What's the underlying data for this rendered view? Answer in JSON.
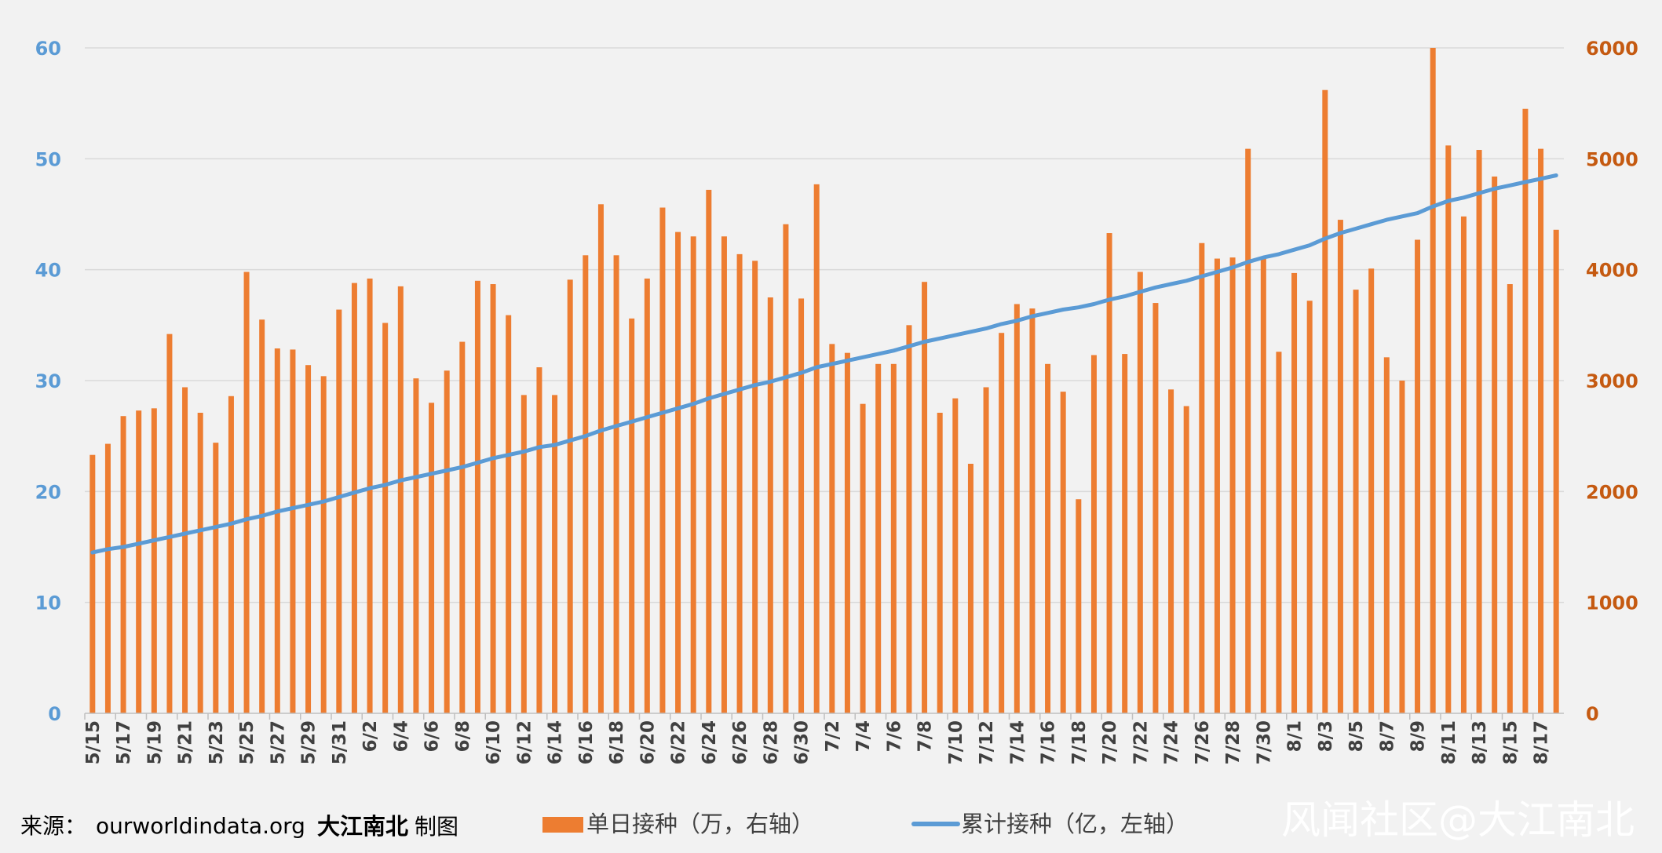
{
  "chart_data": {
    "type": "bar",
    "categories": [
      "5/15",
      "5/16",
      "5/17",
      "5/18",
      "5/19",
      "5/20",
      "5/21",
      "5/22",
      "5/23",
      "5/24",
      "5/25",
      "5/26",
      "5/27",
      "5/28",
      "5/29",
      "5/30",
      "5/31",
      "6/1",
      "6/2",
      "6/3",
      "6/4",
      "6/5",
      "6/6",
      "6/7",
      "6/8",
      "6/9",
      "6/10",
      "6/11",
      "6/12",
      "6/13",
      "6/14",
      "6/15",
      "6/16",
      "6/17",
      "6/18",
      "6/19",
      "6/20",
      "6/21",
      "6/22",
      "6/23",
      "6/24",
      "6/25",
      "6/26",
      "6/27",
      "6/28",
      "6/29",
      "6/30",
      "7/1",
      "7/2",
      "7/3",
      "7/4",
      "7/5",
      "7/6",
      "7/7",
      "7/8",
      "7/9",
      "7/10",
      "7/11",
      "7/12",
      "7/13",
      "7/14",
      "7/15",
      "7/16",
      "7/17",
      "7/18",
      "7/19",
      "7/20",
      "7/21",
      "7/22",
      "7/23",
      "7/24",
      "7/25",
      "7/26",
      "7/27",
      "7/28",
      "7/29",
      "7/30",
      "7/31",
      "8/1",
      "8/2",
      "8/3",
      "8/4",
      "8/5",
      "8/6",
      "8/7",
      "8/8",
      "8/9",
      "8/10",
      "8/11",
      "8/12",
      "8/13",
      "8/14",
      "8/15",
      "8/16",
      "8/17",
      "8/18"
    ],
    "x_tick_labels": [
      "5/15",
      "5/17",
      "5/19",
      "5/21",
      "5/23",
      "5/25",
      "5/27",
      "5/29",
      "5/31",
      "6/2",
      "6/4",
      "6/6",
      "6/8",
      "6/10",
      "6/12",
      "6/14",
      "6/16",
      "6/18",
      "6/20",
      "6/22",
      "6/24",
      "6/26",
      "6/28",
      "6/30",
      "7/2",
      "7/4",
      "7/6",
      "7/8",
      "7/10",
      "7/12",
      "7/14",
      "7/16",
      "7/18",
      "7/20",
      "7/22",
      "7/24",
      "7/26",
      "7/28",
      "7/30",
      "8/1",
      "8/3",
      "8/5",
      "8/7",
      "8/9",
      "8/11",
      "8/13",
      "8/15",
      "8/17"
    ],
    "series": [
      {
        "name": "单日接种（万，右轴）",
        "type": "bar",
        "axis": "right",
        "color": "#ed7d31",
        "values": [
          2330,
          2430,
          2680,
          2730,
          2750,
          3420,
          2940,
          2710,
          2440,
          2860,
          3980,
          3550,
          3290,
          3280,
          3140,
          3040,
          3640,
          3880,
          3920,
          3520,
          3850,
          3020,
          2800,
          3090,
          3350,
          3900,
          3870,
          3590,
          2870,
          3120,
          2870,
          3910,
          4130,
          4590,
          4130,
          3560,
          3920,
          4560,
          4340,
          4300,
          4720,
          4300,
          4140,
          4080,
          3750,
          4410,
          3740,
          4770,
          3330,
          3250,
          2790,
          3150,
          3150,
          3500,
          3890,
          2710,
          2840,
          2250,
          2940,
          3430,
          3690,
          3650,
          3150,
          2900,
          1930,
          3230,
          4330,
          3240,
          3980,
          3700,
          2920,
          2770,
          4240,
          4100,
          4110,
          5090,
          4110,
          3260,
          3970,
          3720,
          5620,
          4450,
          3820,
          4010,
          3210,
          3000,
          4270,
          6000,
          5120,
          4480,
          5080,
          4840,
          3870,
          5450,
          5090,
          4360
        ]
      },
      {
        "name": "累计接种（亿，左轴）",
        "type": "line",
        "axis": "left",
        "color": "#5b9bd5",
        "values": [
          14.5,
          14.8,
          15.0,
          15.3,
          15.6,
          15.9,
          16.2,
          16.5,
          16.8,
          17.1,
          17.5,
          17.8,
          18.2,
          18.5,
          18.8,
          19.1,
          19.5,
          19.9,
          20.3,
          20.6,
          21.0,
          21.3,
          21.6,
          21.9,
          22.2,
          22.6,
          23.0,
          23.3,
          23.6,
          24.0,
          24.2,
          24.6,
          25.0,
          25.5,
          25.9,
          26.3,
          26.7,
          27.1,
          27.5,
          27.9,
          28.4,
          28.8,
          29.2,
          29.6,
          29.9,
          30.3,
          30.7,
          31.2,
          31.5,
          31.8,
          32.1,
          32.4,
          32.7,
          33.1,
          33.5,
          33.8,
          34.1,
          34.4,
          34.7,
          35.1,
          35.4,
          35.8,
          36.1,
          36.4,
          36.6,
          36.9,
          37.3,
          37.6,
          38.0,
          38.4,
          38.7,
          39.0,
          39.4,
          39.8,
          40.2,
          40.7,
          41.1,
          41.4,
          41.8,
          42.2,
          42.8,
          43.3,
          43.7,
          44.1,
          44.5,
          44.8,
          45.1,
          45.7,
          46.2,
          46.5,
          46.9,
          47.3,
          47.6,
          47.9,
          48.2,
          48.5
        ]
      }
    ],
    "y_left": {
      "ticks": [
        "0",
        "10",
        "20",
        "30",
        "40",
        "50",
        "60"
      ],
      "ylim": [
        0,
        60
      ]
    },
    "y_right": {
      "ticks": [
        "0",
        "1000",
        "2000",
        "3000",
        "4000",
        "5000",
        "6000"
      ],
      "ylim": [
        0,
        6000
      ]
    },
    "grid": true,
    "legend_position": "bottom"
  },
  "footer": {
    "source_prefix": "来源：",
    "source_site": "ourworldindata.org",
    "author_bold": "大江南北",
    "author_suffix": " 制图"
  },
  "legend": {
    "bar_label": "单日接种（万，右轴）",
    "line_label": "累计接种（亿，左轴）"
  },
  "watermark": "风闻社区@大江南北",
  "colors": {
    "bar": "#ed7d31",
    "line": "#5b9bd5",
    "left_tick": "#5b9bd5",
    "right_tick": "#c55a11",
    "grid": "#d9d9d9",
    "background": "#f2f2f2"
  }
}
